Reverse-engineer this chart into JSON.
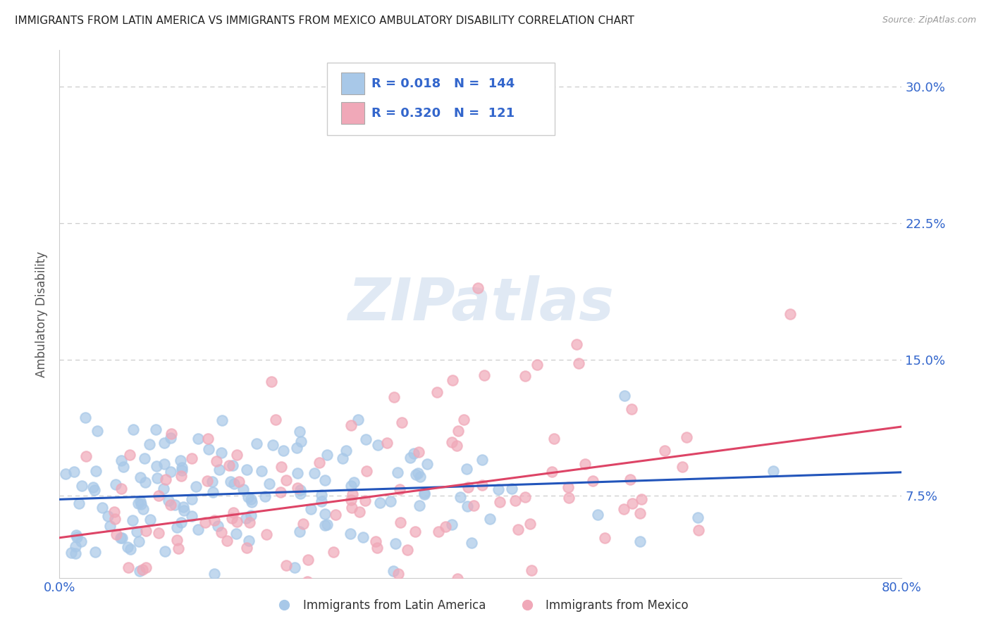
{
  "title": "IMMIGRANTS FROM LATIN AMERICA VS IMMIGRANTS FROM MEXICO AMBULATORY DISABILITY CORRELATION CHART",
  "source": "Source: ZipAtlas.com",
  "ylabel": "Ambulatory Disability",
  "series1_label": "Immigrants from Latin America",
  "series2_label": "Immigrants from Mexico",
  "series1_color": "#a8c8e8",
  "series2_color": "#f0a8b8",
  "series1_line_color": "#2255bb",
  "series2_line_color": "#dd4466",
  "legend_color": "#3366cc",
  "R1": 0.018,
  "N1": 144,
  "R2": 0.32,
  "N2": 121,
  "xmin": 0.0,
  "xmax": 0.8,
  "ymin": 0.03,
  "ymax": 0.32,
  "yticks": [
    0.075,
    0.15,
    0.225,
    0.3
  ],
  "ytick_labels": [
    "7.5%",
    "15.0%",
    "22.5%",
    "30.0%"
  ],
  "xticks": [
    0.0,
    0.1,
    0.2,
    0.3,
    0.4,
    0.5,
    0.6,
    0.7,
    0.8
  ],
  "background_color": "#ffffff",
  "watermark_text": "ZIPatlas",
  "title_fontsize": 11,
  "axis_tick_color": "#3366cc",
  "grid_color": "#cccccc",
  "ylabel_color": "#555555"
}
